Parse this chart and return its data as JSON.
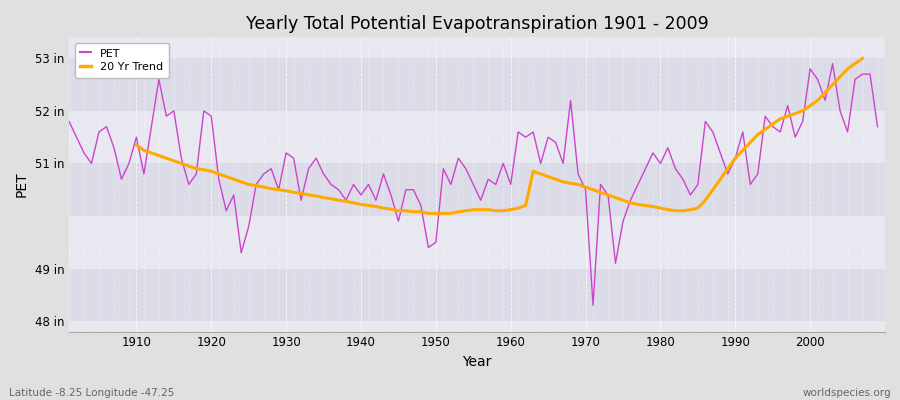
{
  "title": "Yearly Total Potential Evapotranspiration 1901 - 2009",
  "xlabel": "Year",
  "ylabel": "PET",
  "lat_lon_label": "Latitude -8.25 Longitude -47.25",
  "source_label": "worldspecies.org",
  "pet_color": "#cc44cc",
  "trend_color": "#ffaa00",
  "fig_bg_color": "#e0e0e0",
  "plot_bg_color": "#e8e8ee",
  "band_colors": [
    "#dcdce8",
    "#e8e8f0"
  ],
  "ylim": [
    47.8,
    53.4
  ],
  "yticks": [
    48,
    49,
    51,
    52,
    53
  ],
  "ytick_labels": [
    "48 in",
    "49 in",
    "51 in",
    "52 in",
    "53 in"
  ],
  "xlim": [
    1901,
    2010
  ],
  "xticks": [
    1910,
    1920,
    1930,
    1940,
    1950,
    1960,
    1970,
    1980,
    1990,
    2000
  ],
  "years": [
    1901,
    1902,
    1903,
    1904,
    1905,
    1906,
    1907,
    1908,
    1909,
    1910,
    1911,
    1912,
    1913,
    1914,
    1915,
    1916,
    1917,
    1918,
    1919,
    1920,
    1921,
    1922,
    1923,
    1924,
    1925,
    1926,
    1927,
    1928,
    1929,
    1930,
    1931,
    1932,
    1933,
    1934,
    1935,
    1936,
    1937,
    1938,
    1939,
    1940,
    1941,
    1942,
    1943,
    1944,
    1945,
    1946,
    1947,
    1948,
    1949,
    1950,
    1951,
    1952,
    1953,
    1954,
    1955,
    1956,
    1957,
    1958,
    1959,
    1960,
    1961,
    1962,
    1963,
    1964,
    1965,
    1966,
    1967,
    1968,
    1969,
    1970,
    1971,
    1972,
    1973,
    1974,
    1975,
    1976,
    1977,
    1978,
    1979,
    1980,
    1981,
    1982,
    1983,
    1984,
    1985,
    1986,
    1987,
    1988,
    1989,
    1990,
    1991,
    1992,
    1993,
    1994,
    1995,
    1996,
    1997,
    1998,
    1999,
    2000,
    2001,
    2002,
    2003,
    2004,
    2005,
    2006,
    2007,
    2008,
    2009
  ],
  "pet_values": [
    51.8,
    51.5,
    51.2,
    51.0,
    51.6,
    51.7,
    51.3,
    50.7,
    51.0,
    51.5,
    50.8,
    51.7,
    52.6,
    51.9,
    52.0,
    51.1,
    50.6,
    50.8,
    52.0,
    51.9,
    50.7,
    50.1,
    50.4,
    49.3,
    49.8,
    50.6,
    50.8,
    50.9,
    50.5,
    51.2,
    51.1,
    50.3,
    50.9,
    51.1,
    50.8,
    50.6,
    50.5,
    50.3,
    50.6,
    50.4,
    50.6,
    50.3,
    50.8,
    50.4,
    49.9,
    50.5,
    50.5,
    50.2,
    49.4,
    49.5,
    50.9,
    50.6,
    51.1,
    50.9,
    50.6,
    50.3,
    50.7,
    50.6,
    51.0,
    50.6,
    51.6,
    51.5,
    51.6,
    51.0,
    51.5,
    51.4,
    51.0,
    52.2,
    50.8,
    50.5,
    48.3,
    50.6,
    50.4,
    49.1,
    49.9,
    50.3,
    50.6,
    50.9,
    51.2,
    51.0,
    51.3,
    50.9,
    50.7,
    50.4,
    50.6,
    51.8,
    51.6,
    51.2,
    50.8,
    51.1,
    51.6,
    50.6,
    50.8,
    51.9,
    51.7,
    51.6,
    52.1,
    51.5,
    51.8,
    52.8,
    52.6,
    52.2,
    52.9,
    52.0,
    51.6,
    52.6,
    52.7,
    52.7,
    51.7
  ],
  "trend_years": [
    1910,
    1911,
    1912,
    1913,
    1914,
    1915,
    1916,
    1917,
    1918,
    1919,
    1920,
    1921,
    1922,
    1923,
    1924,
    1925,
    1926,
    1927,
    1928,
    1929,
    1930,
    1931,
    1932,
    1933,
    1934,
    1935,
    1936,
    1937,
    1938,
    1939,
    1940,
    1941,
    1942,
    1943,
    1944,
    1945,
    1946,
    1947,
    1948,
    1949,
    1950,
    1951,
    1952,
    1953,
    1954,
    1955,
    1956,
    1957,
    1958,
    1959,
    1960,
    1961,
    1962,
    1963,
    1964,
    1965,
    1966,
    1967,
    1968,
    1969,
    1970,
    1971,
    1972,
    1973,
    1974,
    1975,
    1976,
    1977,
    1978,
    1979,
    1980,
    1981,
    1982,
    1983,
    1984,
    1985,
    1986,
    1987,
    1988,
    1989,
    1990,
    1991,
    1992,
    1993,
    1994,
    1995,
    1996,
    1997,
    1998,
    1999,
    2000,
    2001,
    2002,
    2003,
    2004,
    2005,
    2006,
    2007
  ],
  "trend_values": [
    51.35,
    51.25,
    51.2,
    51.15,
    51.1,
    51.05,
    51.0,
    50.95,
    50.9,
    50.88,
    50.85,
    50.8,
    50.75,
    50.7,
    50.65,
    50.6,
    50.58,
    50.55,
    50.52,
    50.5,
    50.48,
    50.45,
    50.43,
    50.4,
    50.38,
    50.35,
    50.33,
    50.3,
    50.28,
    50.25,
    50.22,
    50.2,
    50.18,
    50.15,
    50.13,
    50.1,
    50.1,
    50.08,
    50.08,
    50.05,
    50.05,
    50.05,
    50.05,
    50.08,
    50.1,
    50.12,
    50.12,
    50.12,
    50.1,
    50.1,
    50.12,
    50.15,
    50.2,
    50.85,
    50.8,
    50.75,
    50.7,
    50.65,
    50.62,
    50.6,
    50.55,
    50.5,
    50.45,
    50.4,
    50.35,
    50.3,
    50.25,
    50.22,
    50.2,
    50.18,
    50.15,
    50.12,
    50.1,
    50.1,
    50.12,
    50.15,
    50.3,
    50.5,
    50.7,
    50.9,
    51.1,
    51.25,
    51.4,
    51.55,
    51.65,
    51.75,
    51.85,
    51.9,
    51.95,
    52.0,
    52.1,
    52.2,
    52.35,
    52.5,
    52.65,
    52.8,
    52.9,
    53.0
  ]
}
